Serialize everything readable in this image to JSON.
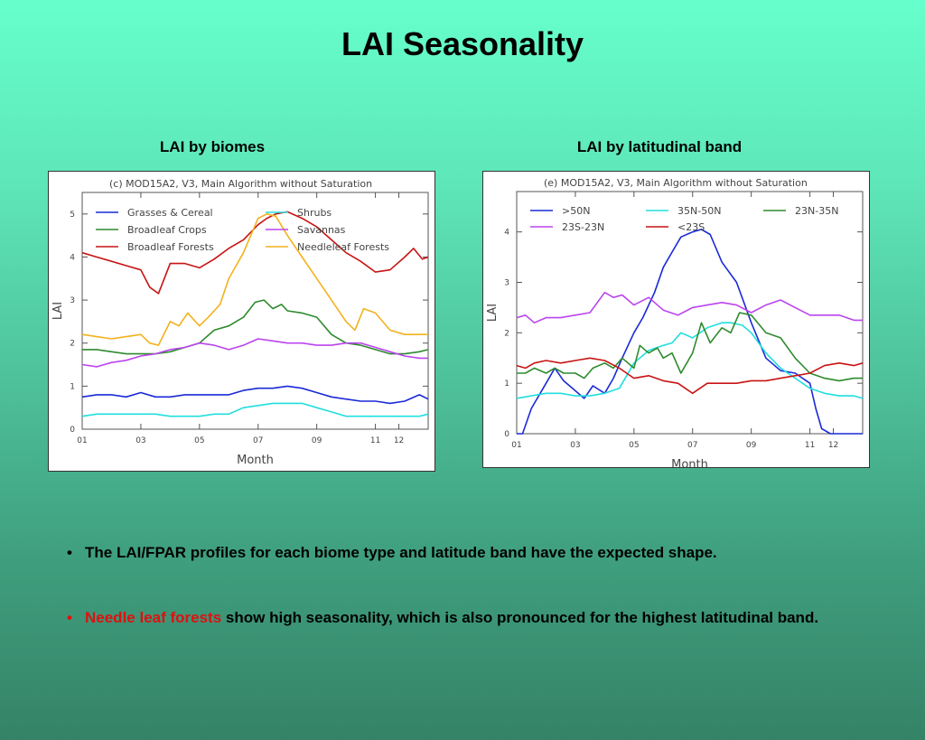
{
  "page": {
    "title": "LAI Seasonality",
    "bullets": [
      {
        "marker": "•",
        "text": "The LAI/FPAR profiles for each biome type and latitude band have the expected shape."
      },
      {
        "marker": "•",
        "highlight": "Needle leaf forests",
        "highlight_color": "#e01010",
        "text": " show high seasonality, which is also pronounced for the highest latitudinal band."
      }
    ]
  },
  "chart_data": [
    {
      "panel_title": "LAI by biomes",
      "type": "line",
      "title": "(c) MOD15A2, V3, Main Algorithm without Saturation",
      "xlabel": "Month",
      "ylabel": "LAI",
      "xlim": [
        1,
        12.8
      ],
      "ylim": [
        0,
        5.5
      ],
      "x_ticks": [
        "01",
        "03",
        "05",
        "07",
        "09",
        "11",
        "12"
      ],
      "x_tick_values": [
        1,
        3,
        5,
        7,
        9,
        11,
        11.8
      ],
      "y_ticks": [
        "0",
        "1",
        "2",
        "3",
        "4",
        "5"
      ],
      "legend_position": "top",
      "grid": false,
      "series": [
        {
          "name": "Grasses & Cereal",
          "color": "#1a2ad6",
          "x": [
            1,
            1.5,
            2,
            2.5,
            3,
            3.5,
            4,
            4.5,
            5,
            5.5,
            6,
            6.5,
            7,
            7.5,
            8,
            8.5,
            9,
            9.5,
            10,
            10.5,
            11,
            11.5,
            12,
            12.5,
            12.8
          ],
          "y": [
            0.75,
            0.8,
            0.8,
            0.75,
            0.85,
            0.75,
            0.75,
            0.8,
            0.8,
            0.8,
            0.8,
            0.9,
            0.95,
            0.95,
            1.0,
            0.95,
            0.85,
            0.75,
            0.7,
            0.65,
            0.65,
            0.6,
            0.65,
            0.8,
            0.7
          ]
        },
        {
          "name": "Broadleaf Crops",
          "color": "#2e8b2e",
          "x": [
            1,
            1.5,
            2,
            2.5,
            3,
            3.5,
            4,
            4.5,
            5,
            5.5,
            6,
            6.5,
            6.9,
            7.2,
            7.5,
            7.8,
            8,
            8.5,
            9,
            9.5,
            10,
            10.5,
            11,
            11.5,
            12,
            12.5,
            12.8
          ],
          "y": [
            1.85,
            1.85,
            1.8,
            1.75,
            1.75,
            1.75,
            1.8,
            1.9,
            2.0,
            2.3,
            2.4,
            2.6,
            2.95,
            3.0,
            2.8,
            2.9,
            2.75,
            2.7,
            2.6,
            2.2,
            2.0,
            1.95,
            1.85,
            1.75,
            1.75,
            1.8,
            1.85
          ]
        },
        {
          "name": "Broadleaf Forests",
          "color": "#c81414",
          "x": [
            1,
            1.5,
            2,
            2.5,
            3,
            3.3,
            3.6,
            4,
            4.5,
            5,
            5.5,
            6,
            6.5,
            7,
            7.3,
            7.6,
            8,
            8.5,
            9,
            9.5,
            10,
            10.5,
            11,
            11.5,
            12,
            12.3,
            12.6,
            12.8
          ],
          "y": [
            4.1,
            4.0,
            3.9,
            3.8,
            3.7,
            3.3,
            3.15,
            3.85,
            3.85,
            3.75,
            3.95,
            4.2,
            4.4,
            4.75,
            4.9,
            5.0,
            5.05,
            4.9,
            4.7,
            4.4,
            4.1,
            3.9,
            3.65,
            3.7,
            4.0,
            4.2,
            3.95,
            4.0
          ]
        },
        {
          "name": "Shrubs",
          "color": "#22dede",
          "x": [
            1,
            1.5,
            2,
            2.5,
            3,
            3.5,
            4,
            4.5,
            5,
            5.5,
            6,
            6.5,
            7,
            7.5,
            8,
            8.5,
            9,
            9.5,
            10,
            10.5,
            11,
            11.5,
            12,
            12.5,
            12.8
          ],
          "y": [
            0.3,
            0.35,
            0.35,
            0.35,
            0.35,
            0.35,
            0.3,
            0.3,
            0.3,
            0.35,
            0.35,
            0.5,
            0.55,
            0.6,
            0.6,
            0.6,
            0.5,
            0.4,
            0.3,
            0.3,
            0.3,
            0.3,
            0.3,
            0.3,
            0.35
          ]
        },
        {
          "name": "Savannas",
          "color": "#bb44ee",
          "x": [
            1,
            1.5,
            2,
            2.5,
            3,
            3.5,
            4,
            4.5,
            5,
            5.5,
            6,
            6.5,
            7,
            7.5,
            8,
            8.5,
            9,
            9.5,
            10,
            10.5,
            11,
            11.5,
            12,
            12.5,
            12.8
          ],
          "y": [
            1.5,
            1.45,
            1.55,
            1.6,
            1.7,
            1.75,
            1.85,
            1.9,
            2.0,
            1.95,
            1.85,
            1.95,
            2.1,
            2.05,
            2.0,
            2.0,
            1.95,
            1.95,
            2.0,
            2.0,
            1.9,
            1.8,
            1.7,
            1.65,
            1.65
          ]
        },
        {
          "name": "Needleleaf Forests",
          "color": "#f2b21e",
          "x": [
            1,
            1.5,
            2,
            2.5,
            3,
            3.3,
            3.6,
            4,
            4.3,
            4.6,
            5,
            5.3,
            5.7,
            6,
            6.5,
            7,
            7.3,
            7.6,
            8,
            8.5,
            9,
            9.5,
            10,
            10.3,
            10.6,
            11,
            11.5,
            12,
            12.5,
            12.8
          ],
          "y": [
            2.2,
            2.15,
            2.1,
            2.15,
            2.2,
            2.0,
            1.95,
            2.5,
            2.4,
            2.7,
            2.4,
            2.6,
            2.9,
            3.5,
            4.1,
            4.9,
            5.0,
            4.95,
            4.5,
            4.0,
            3.5,
            3.0,
            2.5,
            2.3,
            2.8,
            2.7,
            2.3,
            2.2,
            2.2,
            2.2
          ]
        }
      ]
    },
    {
      "panel_title": "LAI by latitudinal band",
      "type": "line",
      "title": "(e) MOD15A2, V3, Main Algorithm without Saturation",
      "xlabel": "Month",
      "ylabel": "LAI",
      "xlim": [
        1,
        12.8
      ],
      "ylim": [
        0,
        4.8
      ],
      "x_ticks": [
        "01",
        "03",
        "05",
        "07",
        "09",
        "11",
        "12"
      ],
      "x_tick_values": [
        1,
        3,
        5,
        7,
        9,
        11,
        11.8
      ],
      "y_ticks": [
        "0",
        "1",
        "2",
        "3",
        "4"
      ],
      "legend_position": "top",
      "grid": false,
      "series": [
        {
          "name": ">50N",
          "color": "#1a2ad6",
          "x": [
            1,
            1.2,
            1.5,
            2,
            2.3,
            2.6,
            3,
            3.3,
            3.6,
            4,
            4.3,
            4.6,
            5,
            5.3,
            5.7,
            6,
            6.3,
            6.6,
            7,
            7.3,
            7.6,
            8,
            8.5,
            9,
            9.5,
            10,
            10.5,
            11,
            11.2,
            11.4,
            11.7,
            12,
            12.5,
            12.8
          ],
          "y": [
            0,
            0,
            0.5,
            1.0,
            1.3,
            1.05,
            0.85,
            0.7,
            0.95,
            0.8,
            1.1,
            1.5,
            2.0,
            2.3,
            2.8,
            3.3,
            3.6,
            3.9,
            4.0,
            4.05,
            3.95,
            3.4,
            3.0,
            2.2,
            1.5,
            1.25,
            1.2,
            1.0,
            0.5,
            0.1,
            0,
            0,
            0,
            0
          ]
        },
        {
          "name": "35N-50N",
          "color": "#22dede",
          "x": [
            1,
            1.5,
            2,
            2.5,
            3,
            3.5,
            4,
            4.5,
            5,
            5.5,
            6,
            6.3,
            6.6,
            7,
            7.5,
            8,
            8.3,
            8.7,
            9,
            9.5,
            10,
            10.5,
            11,
            11.5,
            12,
            12.5,
            12.8
          ],
          "y": [
            0.7,
            0.75,
            0.8,
            0.8,
            0.75,
            0.75,
            0.8,
            0.9,
            1.4,
            1.65,
            1.75,
            1.8,
            2.0,
            1.9,
            2.1,
            2.2,
            2.2,
            2.15,
            2.0,
            1.6,
            1.3,
            1.1,
            0.9,
            0.8,
            0.75,
            0.75,
            0.7
          ]
        },
        {
          "name": "23N-35N",
          "color": "#2e8b2e",
          "x": [
            1,
            1.3,
            1.6,
            2,
            2.3,
            2.6,
            3,
            3.3,
            3.6,
            4,
            4.3,
            4.6,
            5,
            5.2,
            5.5,
            5.8,
            6,
            6.3,
            6.6,
            7,
            7.3,
            7.6,
            8,
            8.3,
            8.6,
            9,
            9.5,
            10,
            10.5,
            11,
            11.5,
            12,
            12.5,
            12.8
          ],
          "y": [
            1.2,
            1.2,
            1.3,
            1.2,
            1.3,
            1.2,
            1.2,
            1.1,
            1.3,
            1.4,
            1.3,
            1.5,
            1.3,
            1.75,
            1.6,
            1.7,
            1.5,
            1.6,
            1.2,
            1.6,
            2.2,
            1.8,
            2.1,
            2.0,
            2.4,
            2.35,
            2.0,
            1.9,
            1.5,
            1.2,
            1.1,
            1.05,
            1.1,
            1.1
          ]
        },
        {
          "name": "23S-23N",
          "color": "#bb44ee",
          "x": [
            1,
            1.3,
            1.6,
            2,
            2.5,
            3,
            3.5,
            4,
            4.3,
            4.6,
            5,
            5.5,
            6,
            6.5,
            7,
            7.5,
            8,
            8.5,
            9,
            9.5,
            10,
            10.5,
            11,
            11.5,
            12,
            12.5,
            12.8
          ],
          "y": [
            2.3,
            2.35,
            2.2,
            2.3,
            2.3,
            2.35,
            2.4,
            2.8,
            2.7,
            2.75,
            2.55,
            2.7,
            2.45,
            2.35,
            2.5,
            2.55,
            2.6,
            2.55,
            2.4,
            2.55,
            2.65,
            2.5,
            2.35,
            2.35,
            2.35,
            2.25,
            2.25
          ]
        },
        {
          "name": "<23S",
          "color": "#c81414",
          "x": [
            1,
            1.3,
            1.6,
            2,
            2.5,
            3,
            3.5,
            4,
            4.5,
            5,
            5.5,
            6,
            6.5,
            7,
            7.5,
            8,
            8.5,
            9,
            9.5,
            10,
            10.5,
            11,
            11.5,
            12,
            12.5,
            12.8
          ],
          "y": [
            1.35,
            1.3,
            1.4,
            1.45,
            1.4,
            1.45,
            1.5,
            1.45,
            1.3,
            1.1,
            1.15,
            1.05,
            1.0,
            0.8,
            1.0,
            1.0,
            1.0,
            1.05,
            1.05,
            1.1,
            1.15,
            1.2,
            1.35,
            1.4,
            1.35,
            1.4
          ]
        }
      ]
    }
  ]
}
